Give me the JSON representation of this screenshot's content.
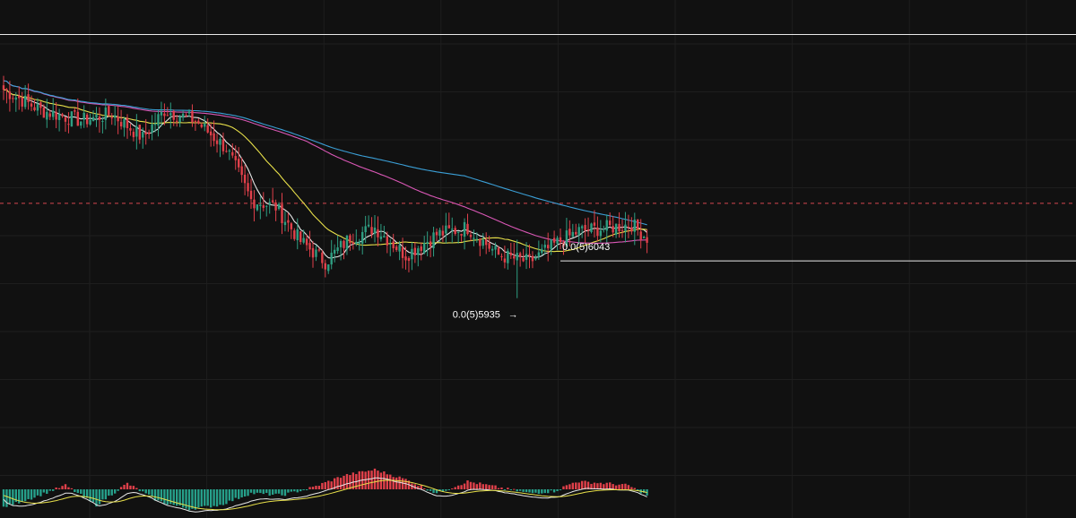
{
  "colors": {
    "background": "#111111",
    "grid": "#1e1e1e",
    "candle_up": "#2f9e82",
    "candle_down": "#e0404a",
    "ma_short": "#e6e6e6",
    "ma_mid": "#e8e04a",
    "ma_long1": "#d957b5",
    "ma_long2": "#3b9fd6",
    "level_line": "#e8e8e8",
    "current_price_line": "#d6474f",
    "macd_up": "#26a08a",
    "macd_down": "#e0404a",
    "macd_line": "#e8e8e8",
    "signal_line": "#e8e04a"
  },
  "chart_data": {
    "type": "candlestick",
    "title": "",
    "axis_labels_visible": false,
    "grid": true,
    "y_range": [
      5.5e-06,
      6.8e-06
    ],
    "horizontal_levels": [
      6.7e-06,
      6.043e-06
    ],
    "current_price": 6.21e-06,
    "low_marker": {
      "label": "0.0(5)5935",
      "value": 5.935e-06,
      "arrow": "→"
    },
    "level_marker": {
      "label": "0.0(5)6043",
      "value": 6.043e-06
    },
    "price_anchors": [
      [
        0,
        6.54e-06
      ],
      [
        12,
        6.48e-06
      ],
      [
        25,
        6.45e-06
      ],
      [
        35,
        6.47e-06
      ],
      [
        45,
        6.4e-06
      ],
      [
        52,
        6.48e-06
      ],
      [
        62,
        6.45e-06
      ],
      [
        72,
        6.37e-06
      ],
      [
        80,
        6.22e-06
      ],
      [
        88,
        6.2e-06
      ],
      [
        96,
        6.1e-06
      ],
      [
        104,
        6.04e-06
      ],
      [
        112,
        6.11e-06
      ],
      [
        120,
        6.14e-06
      ],
      [
        130,
        6.06e-06
      ],
      [
        140,
        6.12e-06
      ],
      [
        150,
        6.14e-06
      ],
      [
        160,
        6.06e-06
      ],
      [
        170,
        6.04e-06
      ],
      [
        178,
        6.09e-06
      ],
      [
        186,
        6.13e-06
      ],
      [
        196,
        6.14e-06
      ],
      [
        203,
        6.15e-06
      ],
      [
        208,
        6.11e-06
      ]
    ],
    "ma_periods": [
      7,
      25,
      99,
      150
    ],
    "candle_count": 209,
    "macd": {
      "histogram_anchors": [
        [
          0,
          -0.9
        ],
        [
          10,
          -0.4
        ],
        [
          20,
          0.2
        ],
        [
          30,
          -0.8
        ],
        [
          40,
          0.3
        ],
        [
          50,
          -0.6
        ],
        [
          60,
          -1.0
        ],
        [
          70,
          -0.8
        ],
        [
          80,
          -0.2
        ],
        [
          90,
          -0.3
        ],
        [
          100,
          0.1
        ],
        [
          110,
          0.7
        ],
        [
          120,
          1.0
        ],
        [
          130,
          0.5
        ],
        [
          140,
          -0.2
        ],
        [
          150,
          0.4
        ],
        [
          160,
          0.1
        ],
        [
          170,
          -0.2
        ],
        [
          178,
          -0.1
        ],
        [
          185,
          0.4
        ],
        [
          195,
          0.3
        ],
        [
          202,
          0.2
        ],
        [
          208,
          -0.3
        ]
      ]
    }
  }
}
